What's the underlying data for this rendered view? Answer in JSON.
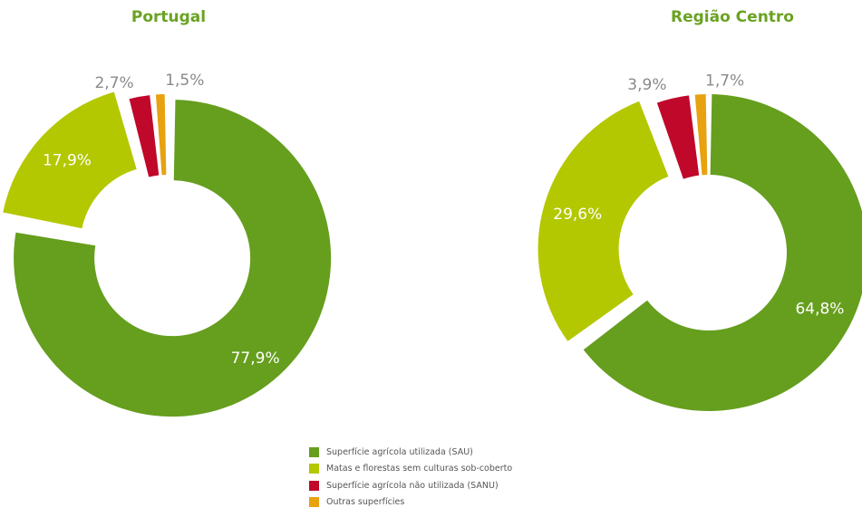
{
  "chart_data": [
    {
      "type": "pie",
      "title": "Portugal",
      "categories": [
        "Superfície agrícola utilizada (SAU)",
        "Matas e florestas sem culturas sob-coberto",
        "Superfície agrícola não utilizada (SANU)",
        "Outras superfícies"
      ],
      "values": [
        77.9,
        17.9,
        2.7,
        1.5
      ],
      "labels": [
        "77,9%",
        "17,9%",
        "2,7%",
        "1,5%"
      ]
    },
    {
      "type": "pie",
      "title": "Região Centro",
      "categories": [
        "Superfície agrícola utilizada (SAU)",
        "Matas e florestas sem culturas sob-coberto",
        "Superfície agrícola não utilizada (SANU)",
        "Outras superfícies"
      ],
      "values": [
        64.8,
        29.6,
        3.9,
        1.7
      ],
      "labels": [
        "64,8%",
        "29,6%",
        "3,9%",
        "1,7%"
      ]
    }
  ],
  "legend": [
    {
      "label": "Superfície agrícola utilizada (SAU)",
      "color": "#669e1e"
    },
    {
      "label": "Matas e florestas sem culturas sob-coberto",
      "color": "#b3c800"
    },
    {
      "label": "Superfície agrícola não utilizada (SANU)",
      "color": "#c0082a"
    },
    {
      "label": "Outras superfícies",
      "color": "#e8a20f"
    }
  ],
  "title_color": "#6aa222",
  "legend_position": "bottom-center"
}
